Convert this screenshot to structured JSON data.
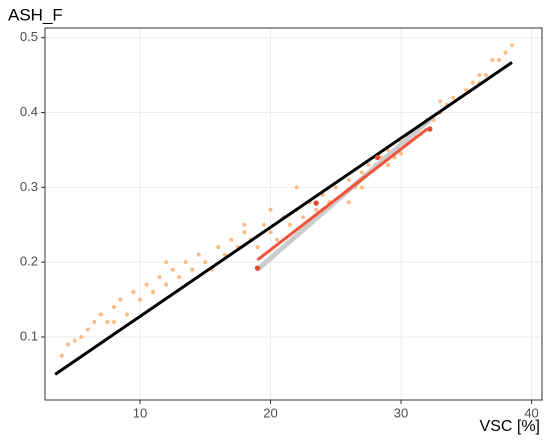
{
  "chart_data": {
    "type": "scatter",
    "title": "ASH_F",
    "x_label": "VSC [%]",
    "xlim": [
      2.72,
      40.8
    ],
    "ylim": [
      0.0157,
      0.513
    ],
    "xticks": [
      10,
      20,
      30,
      40
    ],
    "yticks": [
      0.1,
      0.2,
      0.3,
      0.4,
      0.5
    ],
    "grid": true,
    "series": [
      {
        "color": "#fdbb84",
        "x": [
          4,
          4.5,
          5,
          5.5,
          6,
          6.5,
          7,
          7.5,
          8,
          8.5,
          9,
          9.5,
          10,
          10.5,
          11,
          11.5,
          12,
          12.5,
          13,
          13.5,
          14,
          14.5,
          15,
          15.5,
          16,
          16.5,
          17,
          17.5,
          18,
          18.5,
          19,
          19.5,
          20,
          20.5,
          21,
          21.5,
          22,
          22.5,
          23,
          23.5,
          24,
          24.5,
          25,
          25.5,
          26,
          26.5,
          27,
          27.5,
          28,
          28.5,
          29,
          29.5,
          30,
          30.5,
          31,
          31.5,
          32,
          32.5,
          33,
          33.5,
          34,
          34.5,
          35,
          35.5,
          36,
          36.5,
          37,
          37.5,
          38,
          38.5,
          22,
          24,
          27,
          30,
          33,
          36,
          8,
          12,
          18,
          20,
          26,
          29
        ],
        "values": [
          0.075,
          0.09,
          0.095,
          0.1,
          0.11,
          0.12,
          0.13,
          0.12,
          0.14,
          0.15,
          0.13,
          0.16,
          0.15,
          0.17,
          0.16,
          0.18,
          0.17,
          0.19,
          0.18,
          0.2,
          0.19,
          0.21,
          0.2,
          0.19,
          0.22,
          0.21,
          0.23,
          0.22,
          0.24,
          0.23,
          0.22,
          0.25,
          0.24,
          0.23,
          0.26,
          0.25,
          0.27,
          0.26,
          0.28,
          0.27,
          0.29,
          0.28,
          0.3,
          0.29,
          0.31,
          0.3,
          0.32,
          0.33,
          0.33,
          0.34,
          0.35,
          0.34,
          0.36,
          0.37,
          0.37,
          0.38,
          0.39,
          0.39,
          0.4,
          0.41,
          0.42,
          0.42,
          0.43,
          0.44,
          0.45,
          0.45,
          0.47,
          0.47,
          0.48,
          0.49,
          0.3,
          0.27,
          0.3,
          0.345,
          0.415,
          0.44,
          0.12,
          0.2,
          0.25,
          0.27,
          0.28,
          0.33
        ]
      },
      {
        "color": "#e34a33",
        "x": [
          19,
          23.5,
          28.2,
          32.2
        ],
        "values": [
          0.192,
          0.279,
          0.34,
          0.378
        ]
      }
    ],
    "lines": [
      {
        "color": "#cccccc",
        "x": [
          19,
          32.5
        ],
        "values": [
          0.19,
          0.395
        ]
      },
      {
        "color": "#ef553b",
        "x": [
          19,
          32
        ],
        "values": [
          0.203,
          0.378
        ]
      },
      {
        "color": "#000000",
        "x": [
          3.5,
          38.5
        ],
        "values": [
          0.05,
          0.467
        ]
      }
    ]
  }
}
